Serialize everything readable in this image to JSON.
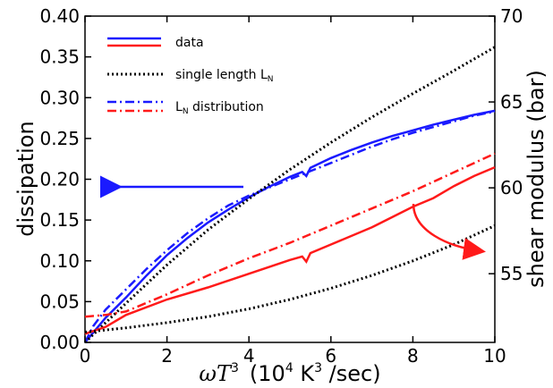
{
  "chart_data": {
    "type": "line",
    "x_axis": {
      "label_italic": "ωT",
      "label_sup": "3",
      "label_rest": "(10",
      "label_sup2": "4",
      "label_rest2": " K",
      "label_sup3": "3",
      "label_rest3": " /sec)",
      "range": [
        0,
        10
      ],
      "ticks": [
        0,
        2,
        4,
        6,
        8,
        10
      ],
      "tick_labels": [
        "0",
        "2",
        "4",
        "6",
        "8",
        "10"
      ]
    },
    "y_left": {
      "label": "dissipation",
      "range": [
        0,
        0.4
      ],
      "ticks": [
        0,
        0.05,
        0.1,
        0.15,
        0.2,
        0.25,
        0.3,
        0.35,
        0.4
      ],
      "tick_labels": [
        "0.00",
        "0.05",
        "0.10",
        "0.15",
        "0.20",
        "0.25",
        "0.30",
        "0.35",
        "0.40"
      ]
    },
    "y_right": {
      "label": "shear modulus (bar)",
      "range": [
        51,
        70
      ],
      "ticks": [
        55,
        60,
        65,
        70
      ],
      "tick_labels": [
        "55",
        "60",
        "65",
        "70"
      ]
    },
    "legend": {
      "position": "top-left",
      "entries": [
        {
          "label": "data",
          "style": "solid"
        },
        {
          "label": "single length L",
          "sub": "N",
          "style": "dotted"
        },
        {
          "label": "",
          "sub": "N",
          "label_after": " distribution",
          "label_prefix": "L",
          "style": "dashdot"
        }
      ]
    },
    "colors": {
      "dissipation": "#1a1aff",
      "modulus": "#ff1a1a",
      "model": "#000000"
    },
    "series": [
      {
        "axis": "left",
        "color": "blue",
        "style": "solid",
        "x": [
          0,
          0.5,
          1,
          1.5,
          2,
          2.5,
          3,
          3.5,
          4,
          4.5,
          5,
          5.3,
          5.4,
          5.5,
          6,
          6.5,
          7,
          7.5,
          8,
          8.5,
          9,
          9.5,
          10
        ],
        "y": [
          0,
          0.03,
          0.055,
          0.082,
          0.107,
          0.128,
          0.147,
          0.163,
          0.178,
          0.191,
          0.203,
          0.209,
          0.204,
          0.214,
          0.226,
          0.236,
          0.245,
          0.253,
          0.26,
          0.267,
          0.273,
          0.279,
          0.284
        ]
      },
      {
        "axis": "left",
        "color": "blue",
        "style": "dashdot",
        "x": [
          0,
          0.2,
          0.5,
          1,
          1.5,
          2,
          2.5,
          3,
          3.5,
          4,
          4.5,
          5,
          5.5,
          6,
          6.5,
          7,
          7.5,
          8,
          8.5,
          9,
          9.5,
          10
        ],
        "y": [
          0,
          0.02,
          0.04,
          0.065,
          0.09,
          0.113,
          0.134,
          0.152,
          0.168,
          0.18,
          0.19,
          0.2,
          0.21,
          0.22,
          0.23,
          0.24,
          0.249,
          0.257,
          0.264,
          0.271,
          0.278,
          0.283
        ]
      },
      {
        "axis": "left",
        "color": "black",
        "style": "dotted",
        "name": "dissipation-model",
        "x": [
          0,
          1,
          2,
          3,
          4,
          5,
          6,
          7,
          8,
          9,
          10
        ],
        "y": [
          0,
          0.048,
          0.095,
          0.138,
          0.176,
          0.212,
          0.245,
          0.276,
          0.305,
          0.333,
          0.362
        ]
      },
      {
        "axis": "right",
        "color": "red",
        "style": "solid",
        "x": [
          0,
          0.5,
          1,
          2,
          3,
          4,
          5,
          5.3,
          5.4,
          5.5,
          6,
          7,
          8,
          8.5,
          9,
          9.5,
          10
        ],
        "y": [
          51.5,
          51.9,
          52.6,
          53.5,
          54.2,
          55.0,
          55.8,
          56.0,
          55.7,
          56.2,
          56.7,
          57.7,
          58.9,
          59.4,
          60.1,
          60.7,
          61.2
        ]
      },
      {
        "axis": "right",
        "color": "red",
        "style": "dashdot",
        "x": [
          0,
          0.5,
          1,
          2,
          3,
          4,
          5,
          6,
          7,
          8,
          9,
          10
        ],
        "y": [
          52.5,
          52.6,
          52.8,
          53.8,
          54.9,
          55.9,
          56.8,
          57.8,
          58.8,
          59.8,
          60.9,
          62.0
        ]
      },
      {
        "axis": "right",
        "color": "black",
        "style": "dotted",
        "name": "modulus-model",
        "x": [
          0,
          1,
          2,
          3,
          4,
          5,
          6,
          7,
          8,
          9,
          10
        ],
        "y": [
          51.6,
          51.85,
          52.15,
          52.5,
          52.95,
          53.5,
          54.15,
          54.9,
          55.75,
          56.7,
          57.8
        ]
      }
    ]
  }
}
